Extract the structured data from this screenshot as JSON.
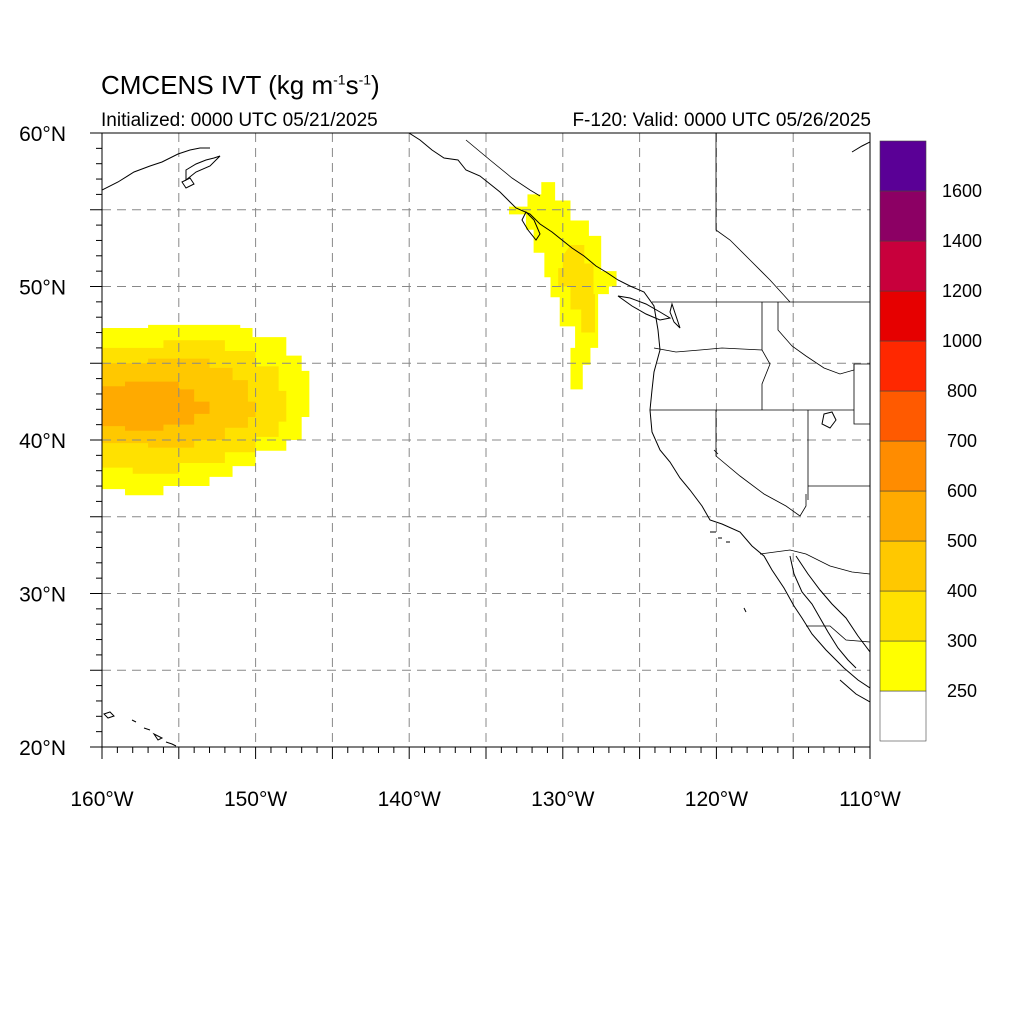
{
  "title": {
    "main": "CMCENS IVT (kg m",
    "sup1": "-1",
    "mid": "s",
    "sup2": "-1",
    "end": ")"
  },
  "initialized": "Initialized: 0000 UTC 05/21/2025",
  "valid": "F-120: Valid: 0000 UTC 05/26/2025",
  "axes": {
    "lon_labels": [
      "160°W",
      "150°W",
      "140°W",
      "130°W",
      "120°W",
      "110°W"
    ],
    "lat_labels": [
      "60°N",
      "50°N",
      "40°N",
      "30°N",
      "20°N"
    ],
    "lon_range": [
      -160,
      -110
    ],
    "lat_range": [
      20,
      60
    ],
    "grid": "dashed, every 5 degrees"
  },
  "colorbar": {
    "levels": [
      250,
      300,
      400,
      500,
      600,
      700,
      800,
      1000,
      1200,
      1400,
      1600
    ],
    "labels": [
      "250",
      "300",
      "400",
      "500",
      "600",
      "700",
      "800",
      "1000",
      "1200",
      "1400",
      "1600"
    ],
    "colors": [
      "#ffffff",
      "#ffff00",
      "#ffe100",
      "#ffc800",
      "#ffaa00",
      "#ff8c00",
      "#ff5a00",
      "#ff2800",
      "#e60000",
      "#c8003c",
      "#8c0064",
      "#5a0096"
    ]
  },
  "ivt_features": [
    {
      "name": "central-pacific-plume",
      "lon": [
        -160,
        -146.5
      ],
      "lat": [
        36.5,
        47.5
      ],
      "peak_ivt": "400-500"
    },
    {
      "name": "bc-coast-plume",
      "lon": [
        -133.5,
        -127
      ],
      "lat": [
        43.5,
        56.5
      ],
      "peak_ivt": "300-400"
    }
  ]
}
